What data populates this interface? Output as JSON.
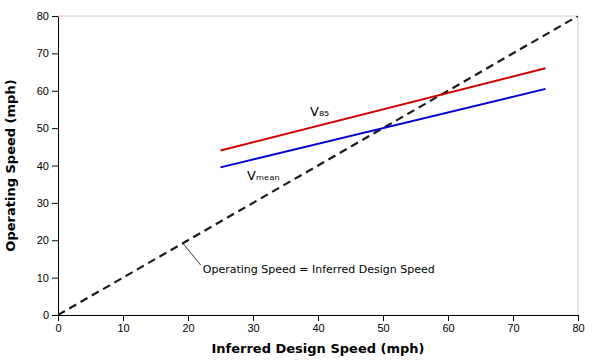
{
  "chart_data": {
    "type": "line",
    "xlabel": "Inferred Design Speed (mph)",
    "ylabel": "Operating Speed (mph)",
    "xlim": [
      0,
      80
    ],
    "ylim": [
      0,
      80
    ],
    "xticks": [
      0,
      10,
      20,
      30,
      40,
      50,
      60,
      70,
      80
    ],
    "yticks": [
      0,
      10,
      20,
      30,
      40,
      50,
      60,
      70,
      80
    ],
    "grid": false,
    "series": [
      {
        "x": [
          0,
          80
        ],
        "values": [
          0,
          80
        ],
        "color": "#1a1a1a",
        "line_style": "dashed"
      },
      {
        "x": [
          25,
          75
        ],
        "values": [
          44,
          66
        ],
        "color": "#cc0000",
        "line_style": "solid"
      },
      {
        "x": [
          25,
          75
        ],
        "values": [
          39.5,
          60.5
        ],
        "color": "#0000cc",
        "line_style": "solid"
      }
    ],
    "annotations": [
      "Operating Speed = Inferred Design Speed",
      "V₈₅",
      "Vₘₑₐₙ"
    ]
  }
}
